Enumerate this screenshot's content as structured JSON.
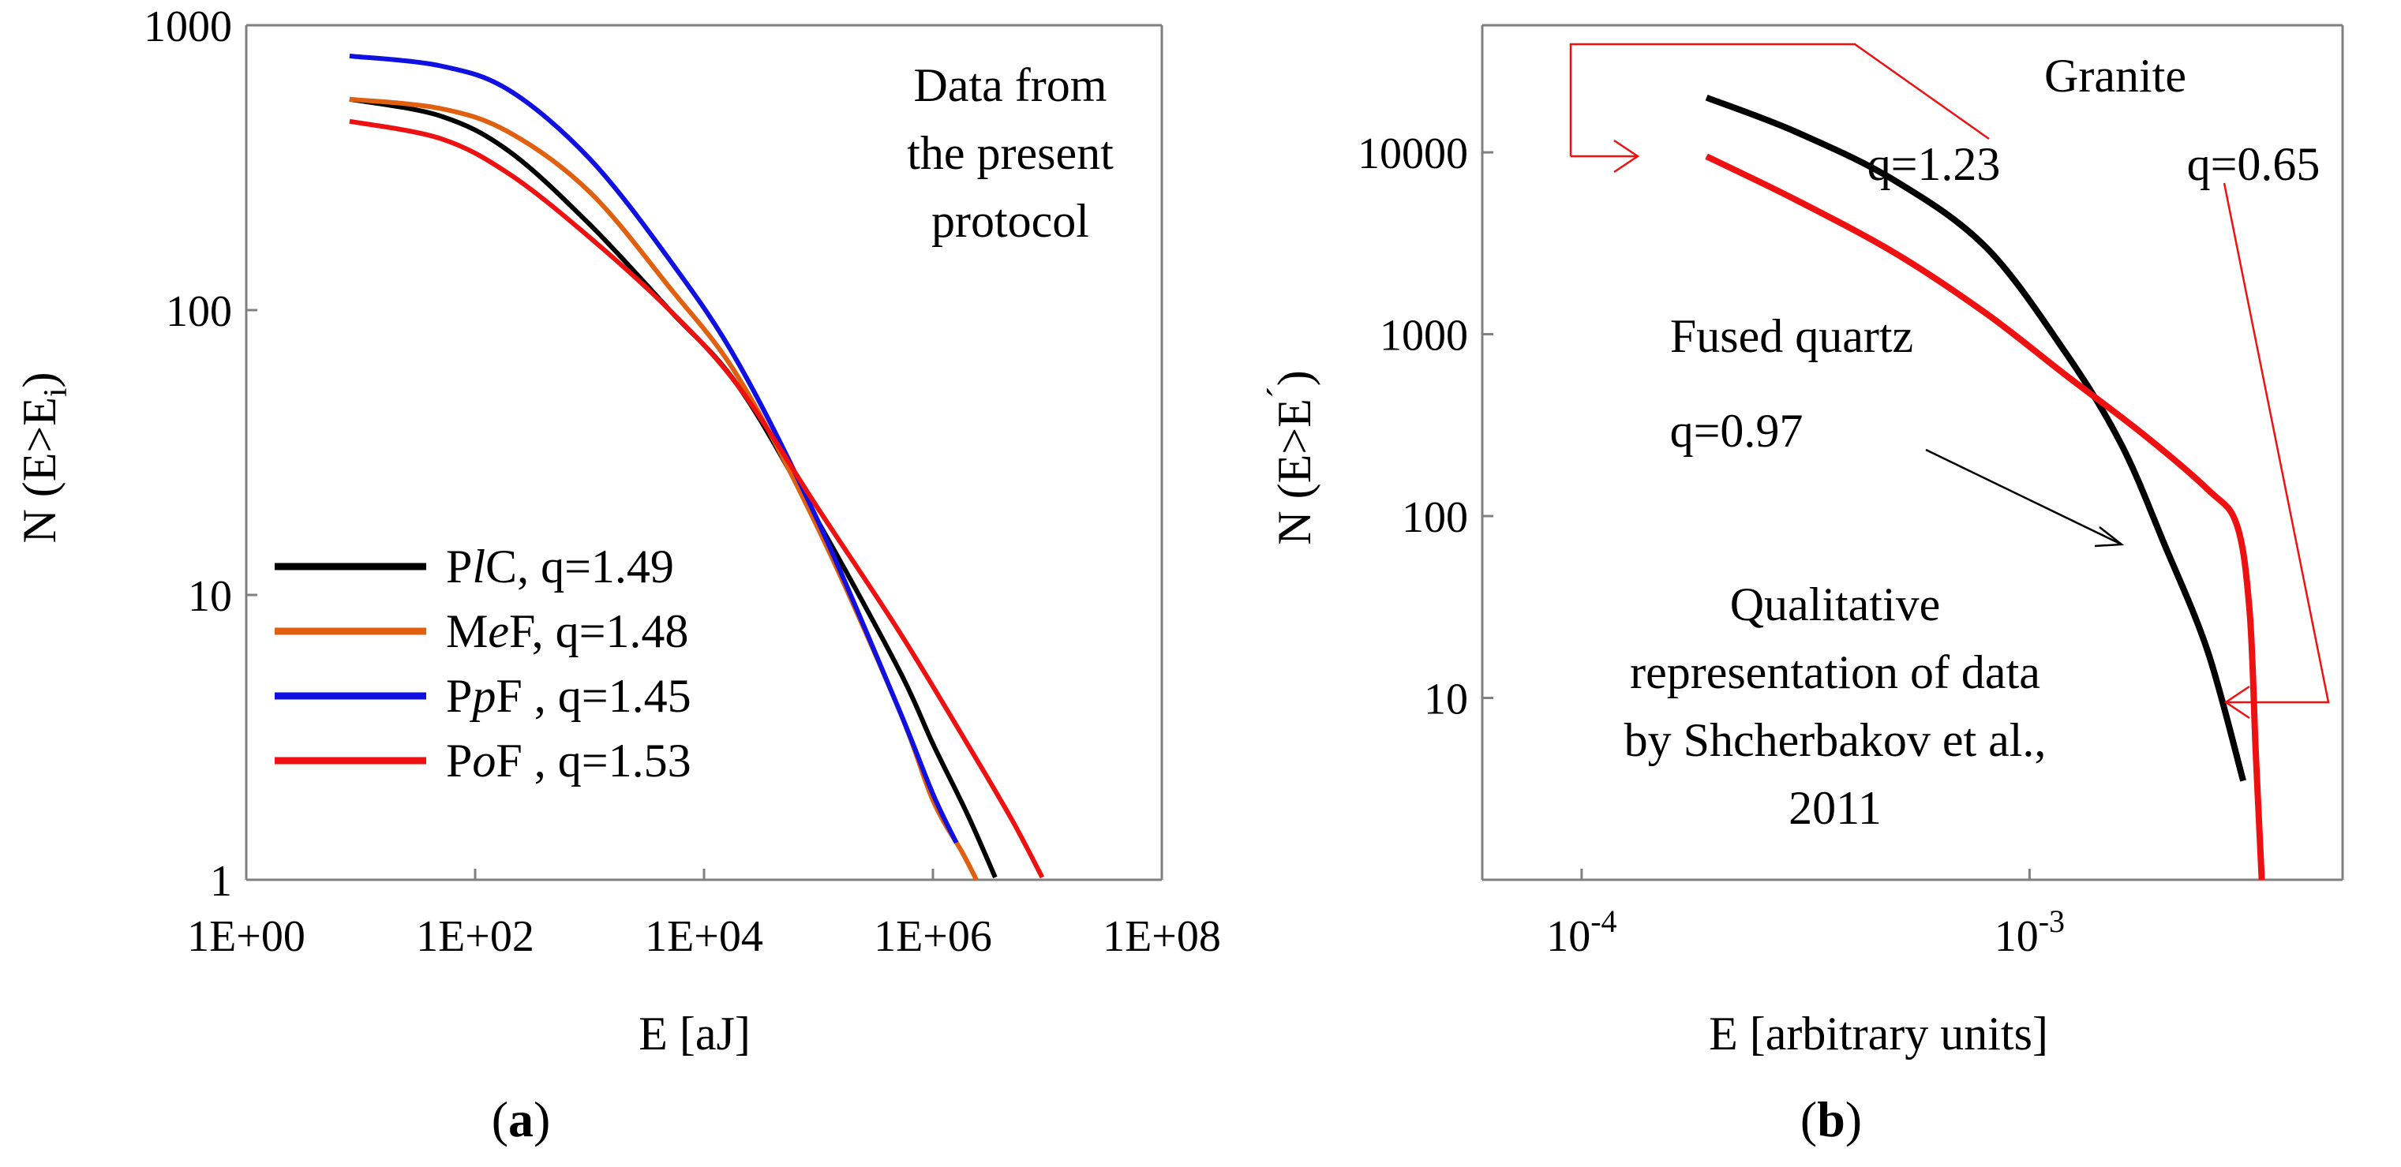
{
  "panels": [
    {
      "label_pre": "(",
      "label": "a",
      "label_post": ")"
    },
    {
      "label_pre": "(",
      "label": "b",
      "label_post": ")"
    }
  ],
  "chart_data": [
    {
      "type": "line",
      "xlabel": "E [aJ]",
      "ylabel": "N (E>Ei)",
      "ylabel_parts": {
        "main": "N (E>E",
        "sub": "i",
        "end": ")"
      },
      "x_scale": "log10",
      "y_scale": "log10",
      "xlim": [
        1,
        100000000
      ],
      "ylim": [
        1,
        1000
      ],
      "x_ticks": [
        1,
        100,
        10000,
        1000000,
        100000000
      ],
      "x_tick_labels": [
        "1E+00",
        "1E+02",
        "1E+04",
        "1E+06",
        "1E+08"
      ],
      "y_ticks": [
        1,
        10,
        100,
        1000
      ],
      "y_tick_labels": [
        "1",
        "10",
        "100",
        "1000"
      ],
      "grid": false,
      "legend_position": "bottom-left",
      "annotations": [
        {
          "lines": [
            "Data from",
            "the present",
            "protocol"
          ],
          "position": "top-right"
        }
      ],
      "series": [
        {
          "name": "PlC,   q=1.49",
          "name_parts": [
            "P",
            "l",
            "C,   q=1.49"
          ],
          "color": "#000000",
          "x": [
            8,
            50,
            200,
            1000,
            5000,
            20000,
            100000,
            500000,
            1000000,
            2000000,
            3500000
          ],
          "y": [
            550,
            480,
            360,
            200,
            100,
            54,
            18,
            5.5,
            3,
            1.7,
            1.02
          ]
        },
        {
          "name": "MeF,   q=1.48",
          "name_parts": [
            "M",
            "e",
            "F,   q=1.48"
          ],
          "color": "#e06010",
          "x": [
            8,
            50,
            200,
            1000,
            5000,
            20000,
            100000,
            500000,
            1000000,
            1800000,
            2400000
          ],
          "y": [
            550,
            510,
            420,
            260,
            120,
            58,
            17,
            4,
            1.9,
            1.25,
            1.0
          ]
        },
        {
          "name": "PpF ,   q=1.45",
          "name_parts": [
            "P",
            "p",
            "F ,   q=1.45"
          ],
          "color": "#1010e0",
          "x": [
            8,
            50,
            200,
            1000,
            5000,
            20000,
            100000,
            500000,
            1000000,
            1600000
          ],
          "y": [
            780,
            720,
            590,
            340,
            150,
            65,
            18,
            4,
            2,
            1.35
          ]
        },
        {
          "name": "PoF ,   q=1.53",
          "name_parts": [
            "P",
            "o",
            "F ,   q=1.53"
          ],
          "color": "#ee1111",
          "x": [
            8,
            50,
            200,
            1000,
            5000,
            20000,
            100000,
            500000,
            2000000,
            5000000,
            9000000
          ],
          "y": [
            460,
            400,
            300,
            180,
            100,
            54,
            20,
            7.5,
            3,
            1.6,
            1.02
          ]
        }
      ]
    },
    {
      "type": "line",
      "xlabel": "E [arbitrary units]",
      "ylabel": "N (E>E´)",
      "ylabel_parts": {
        "main": "N (E>E",
        "sup": "´",
        "end": ")"
      },
      "x_scale": "log10",
      "y_scale": "log10",
      "xlim": [
        6e-05,
        0.005
      ],
      "ylim": [
        1,
        50000
      ],
      "x_ticks": [
        0.0001,
        0.001
      ],
      "x_tick_labels": [
        {
          "base": "10",
          "exp": "-4"
        },
        {
          "base": "10",
          "exp": "-3"
        }
      ],
      "y_ticks": [
        10,
        100,
        1000,
        10000
      ],
      "y_tick_labels": [
        "10",
        "100",
        "1000",
        "10000"
      ],
      "grid": false,
      "annotations": [
        {
          "text": "Granite",
          "color": "#ee1111"
        },
        {
          "text": "q=1.23",
          "color": "#ee1111"
        },
        {
          "text": "q=0.65",
          "color": "#ee1111"
        },
        {
          "text": "Fused quartz",
          "color": "#000000"
        },
        {
          "text": "q=0.97",
          "color": "#000000"
        },
        {
          "lines": [
            "Qualitative",
            "representation of data",
            "by Shcherbakov et al.,",
            "2011"
          ],
          "color": "#000000"
        }
      ],
      "series": [
        {
          "name": "Fused quartz",
          "color": "#000000",
          "x": [
            0.00019,
            0.0003,
            0.0005,
            0.0008,
            0.0012,
            0.0016,
            0.002,
            0.0025,
            0.003
          ],
          "y": [
            20000,
            13000,
            7000,
            3000,
            800,
            250,
            70,
            18,
            3.5
          ]
        },
        {
          "name": "Granite",
          "color": "#ee1111",
          "x": [
            0.00019,
            0.0003,
            0.0005,
            0.0008,
            0.0012,
            0.0018,
            0.0025,
            0.0029,
            0.0031,
            0.0032,
            0.0033
          ],
          "y": [
            9500,
            5500,
            2800,
            1300,
            600,
            280,
            140,
            90,
            30,
            5,
            1
          ]
        }
      ]
    }
  ]
}
